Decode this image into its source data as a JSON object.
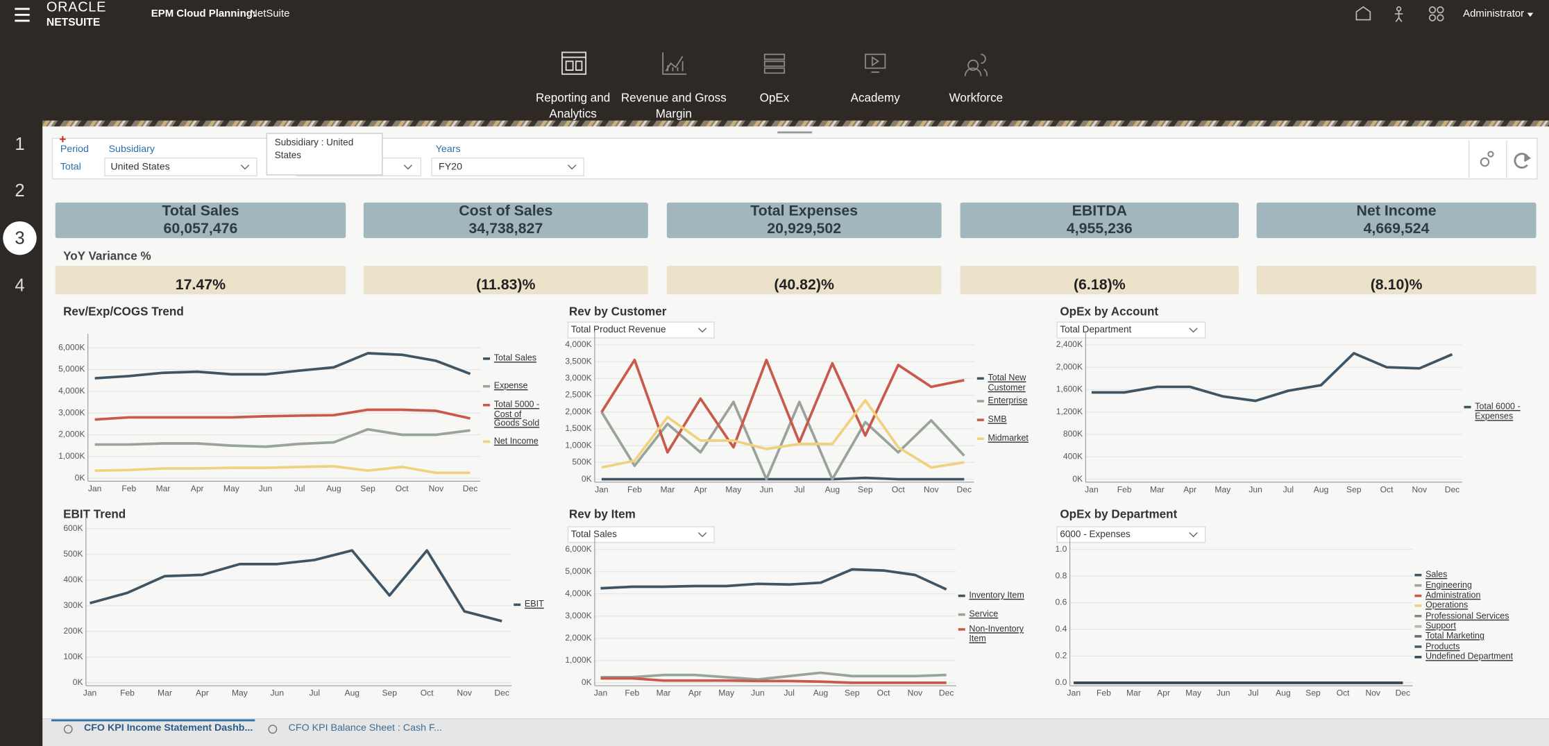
{
  "header": {
    "logo_top": "ORACLE",
    "logo_bottom": "NETSUITE",
    "app_title": "EPM Cloud Planning:",
    "app_subtitle": "NetSuite",
    "user": "Administrator"
  },
  "nav": [
    "Reporting and Analytics",
    "Revenue and Gross Margin",
    "OpEx",
    "Academy",
    "Workforce"
  ],
  "rail": [
    1,
    2,
    3,
    4
  ],
  "filters": {
    "period_label": "Period",
    "period_value": "Total",
    "subsidiary_label": "Subsidiary",
    "subsidiary_value": "United States",
    "tooltip": "Subsidiary : United States",
    "years_label": "Years",
    "years_value": "FY20"
  },
  "kpis": [
    {
      "label": "Total Sales",
      "value": "60,057,476",
      "variance": "17.47%"
    },
    {
      "label": "Cost of Sales",
      "value": "34,738,827",
      "variance": "(11.83)%"
    },
    {
      "label": "Total Expenses",
      "value": "20,929,502",
      "variance": "(40.82)%"
    },
    {
      "label": "EBITDA",
      "value": "4,955,236",
      "variance": "(6.18)%"
    },
    {
      "label": "Net Income",
      "value": "4,669,524",
      "variance": "(8.10)%"
    }
  ],
  "variance_title": "YoY Variance %",
  "tabs": [
    "CFO KPI Income Statement Dashb...",
    "CFO KPI Balance Sheet : Cash F..."
  ],
  "chart_data": [
    {
      "type": "line",
      "title": "Rev/Exp/COGS Trend",
      "categories": [
        "Jan",
        "Feb",
        "Mar",
        "Apr",
        "May",
        "Jun",
        "Jul",
        "Aug",
        "Sep",
        "Oct",
        "Nov",
        "Dec"
      ],
      "series": [
        {
          "name": "Total Sales",
          "color": "#3f5563",
          "values": [
            4600,
            4700,
            4850,
            4900,
            4780,
            4780,
            4950,
            5100,
            5750,
            5680,
            5400,
            4800
          ]
        },
        {
          "name": "Expense",
          "color": "#98a39a",
          "values": [
            1550,
            1550,
            1600,
            1600,
            1500,
            1450,
            1580,
            1650,
            2250,
            2000,
            2000,
            2200
          ]
        },
        {
          "name": "Total 5000 - Cost of Goods Sold",
          "color": "#c95a4b",
          "values": [
            2700,
            2800,
            2800,
            2800,
            2800,
            2850,
            2880,
            2900,
            3150,
            3150,
            3100,
            2750
          ]
        },
        {
          "name": "Net Income",
          "color": "#f0d17e",
          "values": [
            350,
            380,
            450,
            450,
            480,
            480,
            520,
            550,
            350,
            520,
            250,
            250
          ]
        }
      ],
      "ylim": [
        0,
        6000
      ],
      "yticks": [
        {
          "value": 0,
          "label": "0K"
        },
        {
          "value": 1000,
          "label": "1,000K"
        },
        {
          "value": 2000,
          "label": "2,000K"
        },
        {
          "value": 3000,
          "label": "3,000K"
        },
        {
          "value": 4000,
          "label": "4,000K"
        },
        {
          "value": 5000,
          "label": "5,000K"
        },
        {
          "value": 6000,
          "label": "6,000K"
        }
      ],
      "grid": true
    },
    {
      "type": "line",
      "title": "Rev by Customer",
      "selector": "Total Product Revenue",
      "categories": [
        "Jan",
        "Feb",
        "Mar",
        "Apr",
        "May",
        "Jun",
        "Jul",
        "Aug",
        "Sep",
        "Oct",
        "Nov",
        "Dec"
      ],
      "series": [
        {
          "name": "Total New Customer",
          "color": "#3f5563",
          "values": [
            0,
            0,
            0,
            0,
            0,
            0,
            0,
            0,
            40,
            0,
            0,
            0
          ]
        },
        {
          "name": "Enterprise",
          "color": "#98a39a",
          "values": [
            2000,
            400,
            1650,
            800,
            2300,
            0,
            2300,
            0,
            1700,
            800,
            1750,
            700
          ]
        },
        {
          "name": "SMB",
          "color": "#c95a4b",
          "values": [
            2000,
            3550,
            800,
            2400,
            950,
            3550,
            1100,
            3450,
            1300,
            3400,
            2750,
            2950
          ]
        },
        {
          "name": "Midmarket",
          "color": "#f0d17e",
          "values": [
            350,
            550,
            1850,
            1150,
            1150,
            900,
            1050,
            1050,
            2350,
            950,
            350,
            500
          ]
        }
      ],
      "ylim": [
        0,
        4000
      ],
      "yticks": [
        {
          "value": 0,
          "label": "0K"
        },
        {
          "value": 500,
          "label": "500K"
        },
        {
          "value": 1000,
          "label": "1,000K"
        },
        {
          "value": 1500,
          "label": "1,500K"
        },
        {
          "value": 2000,
          "label": "2,000K"
        },
        {
          "value": 2500,
          "label": "2,500K"
        },
        {
          "value": 3000,
          "label": "3,000K"
        },
        {
          "value": 3500,
          "label": "3,500K"
        },
        {
          "value": 4000,
          "label": "4,000K"
        }
      ],
      "grid": true
    },
    {
      "type": "line",
      "title": "OpEx by Account",
      "selector": "Total Department",
      "categories": [
        "Jan",
        "Feb",
        "Mar",
        "Apr",
        "May",
        "Jun",
        "Jul",
        "Aug",
        "Sep",
        "Oct",
        "Nov",
        "Dec"
      ],
      "series": [
        {
          "name": "Total 6000 - Expenses",
          "color": "#3f5563",
          "values": [
            1550,
            1550,
            1650,
            1650,
            1480,
            1400,
            1580,
            1680,
            2250,
            2000,
            1980,
            2230
          ]
        }
      ],
      "ylim": [
        0,
        2400
      ],
      "yticks": [
        {
          "value": 0,
          "label": "0K"
        },
        {
          "value": 400,
          "label": "400K"
        },
        {
          "value": 800,
          "label": "800K"
        },
        {
          "value": 1200,
          "label": "1,200K"
        },
        {
          "value": 1600,
          "label": "1,600K"
        },
        {
          "value": 2000,
          "label": "2,000K"
        },
        {
          "value": 2400,
          "label": "2,400K"
        }
      ],
      "grid": true
    },
    {
      "type": "line",
      "title": "EBIT Trend",
      "categories": [
        "Jan",
        "Feb",
        "Mar",
        "Apr",
        "May",
        "Jun",
        "Jul",
        "Aug",
        "Sep",
        "Oct",
        "Nov",
        "Dec"
      ],
      "series": [
        {
          "name": "EBIT",
          "color": "#3f5563",
          "values": [
            310,
            350,
            415,
            420,
            462,
            462,
            478,
            515,
            340,
            515,
            278,
            240
          ]
        }
      ],
      "ylim": [
        0,
        600
      ],
      "yticks": [
        {
          "value": 0,
          "label": "0K"
        },
        {
          "value": 100,
          "label": "100K"
        },
        {
          "value": 200,
          "label": "200K"
        },
        {
          "value": 300,
          "label": "300K"
        },
        {
          "value": 400,
          "label": "400K"
        },
        {
          "value": 500,
          "label": "500K"
        },
        {
          "value": 600,
          "label": "600K"
        }
      ],
      "grid": true
    },
    {
      "type": "line",
      "title": "Rev by Item",
      "selector": "Total Sales",
      "categories": [
        "Jan",
        "Feb",
        "Mar",
        "Apr",
        "May",
        "Jun",
        "Jul",
        "Aug",
        "Sep",
        "Oct",
        "Nov",
        "Dec"
      ],
      "series": [
        {
          "name": "Inventory Item",
          "color": "#3f5563",
          "values": [
            4250,
            4320,
            4320,
            4350,
            4350,
            4450,
            4420,
            4500,
            5100,
            5050,
            4850,
            4200
          ]
        },
        {
          "name": "Service",
          "color": "#98a39a",
          "values": [
            250,
            250,
            350,
            350,
            250,
            150,
            300,
            450,
            300,
            300,
            300,
            350
          ]
        },
        {
          "name": "Non-Inventory Item",
          "color": "#c95a4b",
          "values": [
            200,
            200,
            100,
            100,
            100,
            80,
            80,
            50,
            0,
            0,
            0,
            0
          ]
        }
      ],
      "ylim": [
        0,
        6000
      ],
      "yticks": [
        {
          "value": 0,
          "label": "0K"
        },
        {
          "value": 1000,
          "label": "1,000K"
        },
        {
          "value": 2000,
          "label": "2,000K"
        },
        {
          "value": 3000,
          "label": "3,000K"
        },
        {
          "value": 4000,
          "label": "4,000K"
        },
        {
          "value": 5000,
          "label": "5,000K"
        },
        {
          "value": 6000,
          "label": "6,000K"
        }
      ],
      "grid": true
    },
    {
      "type": "line",
      "title": "OpEx by Department",
      "selector": "6000 - Expenses",
      "categories": [
        "Jan",
        "Feb",
        "Mar",
        "Apr",
        "May",
        "Jun",
        "Jul",
        "Aug",
        "Sep",
        "Oct",
        "Nov",
        "Dec"
      ],
      "series": [
        {
          "name": "Sales",
          "color": "#3f5563",
          "values": [
            0,
            0,
            0,
            0,
            0,
            0,
            0,
            0,
            0,
            0,
            0,
            0
          ]
        },
        {
          "name": "Engineering",
          "color": "#98a39a",
          "values": [
            0,
            0,
            0,
            0,
            0,
            0,
            0,
            0,
            0,
            0,
            0,
            0
          ]
        },
        {
          "name": "Administration",
          "color": "#c95a4b",
          "values": [
            0,
            0,
            0,
            0,
            0,
            0,
            0,
            0,
            0,
            0,
            0,
            0
          ]
        },
        {
          "name": "Operations",
          "color": "#f0d17e",
          "values": [
            0,
            0,
            0,
            0,
            0,
            0,
            0,
            0,
            0,
            0,
            0,
            0
          ]
        },
        {
          "name": "Professional Services",
          "color": "#8a8a7a",
          "values": [
            0,
            0,
            0,
            0,
            0,
            0,
            0,
            0,
            0,
            0,
            0,
            0
          ]
        },
        {
          "name": "Support",
          "color": "#b6b6b0",
          "values": [
            0,
            0,
            0,
            0,
            0,
            0,
            0,
            0,
            0,
            0,
            0,
            0
          ]
        },
        {
          "name": "Total Marketing",
          "color": "#6b6b6b",
          "values": [
            0,
            0,
            0,
            0,
            0,
            0,
            0,
            0,
            0,
            0,
            0,
            0
          ]
        },
        {
          "name": "Products",
          "color": "#4a5a66",
          "values": [
            0,
            0,
            0,
            0,
            0,
            0,
            0,
            0,
            0,
            0,
            0,
            0
          ]
        },
        {
          "name": "Undefined Department",
          "color": "#3a4a55",
          "values": [
            0,
            0,
            0,
            0,
            0,
            0,
            0,
            0,
            0,
            0,
            0,
            0
          ]
        }
      ],
      "ylim": [
        0,
        1
      ],
      "yticks": [
        {
          "value": 0,
          "label": "0.0"
        },
        0.2,
        0.4,
        0.6,
        0.8,
        {
          "value": 1,
          "label": "1.0"
        }
      ],
      "grid": true
    }
  ]
}
